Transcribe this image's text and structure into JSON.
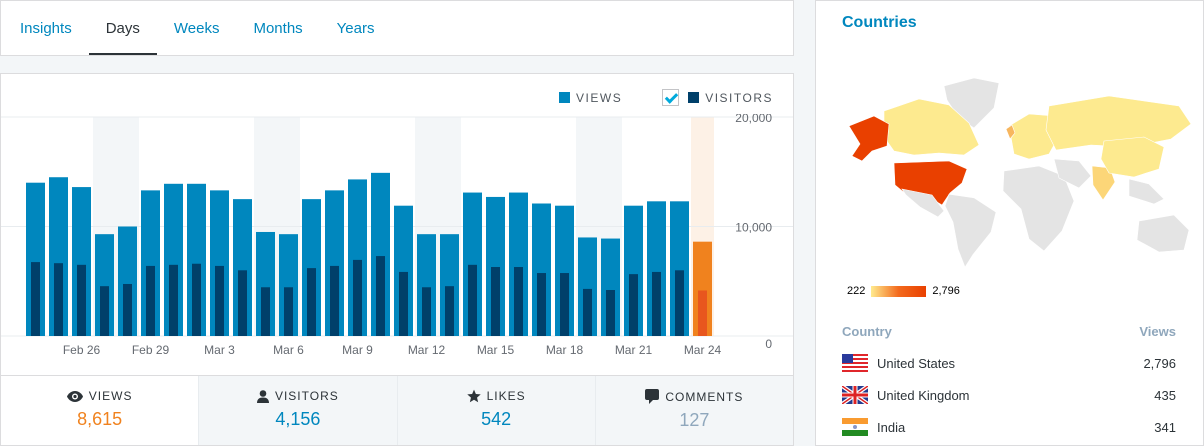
{
  "tabs": [
    {
      "label": "Insights"
    },
    {
      "label": "Days",
      "active": true
    },
    {
      "label": "Weeks"
    },
    {
      "label": "Months"
    },
    {
      "label": "Years"
    }
  ],
  "legend": {
    "views": "VIEWS",
    "visitors": "VISITORS",
    "visitors_checked": true
  },
  "colors": {
    "views": "#0087be",
    "visitors": "#00406a",
    "selected_views": "#f0821e",
    "selected_visitors": "#e8561e",
    "weekend": "#f3f6f8",
    "selected_bg": "#fdf1e6"
  },
  "chart_data": {
    "type": "bar",
    "categories": [
      "Feb 24",
      "Feb 25",
      "Feb 26",
      "Feb 27",
      "Feb 28",
      "Feb 29",
      "Mar 1",
      "Mar 2",
      "Mar 3",
      "Mar 4",
      "Mar 5",
      "Mar 6",
      "Mar 7",
      "Mar 8",
      "Mar 9",
      "Mar 10",
      "Mar 11",
      "Mar 12",
      "Mar 13",
      "Mar 14",
      "Mar 15",
      "Mar 16",
      "Mar 17",
      "Mar 18",
      "Mar 19",
      "Mar 20",
      "Mar 21",
      "Mar 22",
      "Mar 23",
      "Mar 24"
    ],
    "tick_labels": [
      "Feb 26",
      "Feb 29",
      "Mar 3",
      "Mar 6",
      "Mar 9",
      "Mar 12",
      "Mar 15",
      "Mar 18",
      "Mar 21",
      "Mar 24"
    ],
    "y_ticks": [
      "0",
      "10,000",
      "20,000"
    ],
    "ylim": [
      0,
      20000
    ],
    "series": [
      {
        "name": "VIEWS",
        "values": [
          14000,
          14500,
          13600,
          9300,
          10000,
          13300,
          13900,
          13900,
          13300,
          12500,
          9500,
          9300,
          12500,
          13300,
          14300,
          14900,
          11900,
          9300,
          9300,
          13100,
          12700,
          13100,
          12100,
          11900,
          9000,
          8900,
          11900,
          12300,
          12300,
          8615
        ]
      },
      {
        "name": "VISITORS",
        "values": [
          6750,
          6650,
          6500,
          4550,
          4750,
          6400,
          6500,
          6600,
          6400,
          6000,
          4450,
          4450,
          6200,
          6400,
          6950,
          7300,
          5850,
          4450,
          4550,
          6500,
          6300,
          6300,
          5750,
          5750,
          4300,
          4200,
          5650,
          5850,
          6000,
          4156
        ]
      }
    ],
    "highlighted_weeks": [
      "Feb 27",
      "Feb 28",
      "Mar 5",
      "Mar 6",
      "Mar 12",
      "Mar 13",
      "Mar 19",
      "Mar 20"
    ],
    "selected": "Mar 24",
    "grid": true
  },
  "stats": [
    {
      "icon": "eye-icon",
      "label": "VIEWS",
      "value": "8,615",
      "color": "#f0821e"
    },
    {
      "icon": "user-icon",
      "label": "VISITORS",
      "value": "4,156",
      "color": "#0087be"
    },
    {
      "icon": "star-icon",
      "label": "LIKES",
      "value": "542",
      "color": "#0087be"
    },
    {
      "icon": "comment-icon",
      "label": "COMMENTS",
      "value": "127",
      "color": "#8fa7bc"
    }
  ],
  "countries": {
    "title": "Countries",
    "scale_min": "222",
    "scale_max": "2,796",
    "col_country": "Country",
    "col_views": "Views",
    "rows": [
      {
        "name": "United States",
        "views": "2,796",
        "flag": "us-flag-icon"
      },
      {
        "name": "United Kingdom",
        "views": "435",
        "flag": "uk-flag-icon"
      },
      {
        "name": "India",
        "views": "341",
        "flag": "india-flag-icon"
      }
    ]
  }
}
